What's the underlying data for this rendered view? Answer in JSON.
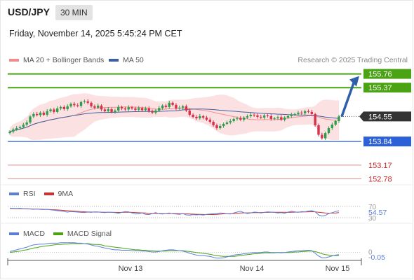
{
  "header": {
    "symbol": "USD/JPY",
    "timeframe": "30 MIN",
    "timestamp": "Friday, November 14, 2025 5:45:24 PM CET",
    "credit": "Research © 2025 Trading Central"
  },
  "colors": {
    "up": "#2e9e4a",
    "down": "#d6324a",
    "resistance": "#4aa312",
    "support": "#2b60d6",
    "minor": "#e68a8a",
    "current": "#333333",
    "band": "#fbd9dc",
    "ma20": "#f28c8c",
    "ma50": "#3d5fa0",
    "arrow": "#2f5fa8",
    "rsi": "#5b7fd8",
    "rsi_ma": "#d32f2f",
    "macd": "#5b7fd8",
    "macd_signal": "#4aa312"
  },
  "legend": {
    "ma20": "MA 20 + Bollinger Bands",
    "ma50": "MA 50",
    "rsi": "RSI",
    "rsi_ma": "9MA",
    "macd": "MACD",
    "macd_signal": "MACD Signal"
  },
  "chart_data": {
    "type": "candlestick",
    "y_range": [
      152.57,
      156.03
    ],
    "levels": [
      {
        "value": 155.76,
        "label": "155.76",
        "kind": "resistance"
      },
      {
        "value": 155.37,
        "label": "155.37",
        "kind": "resistance"
      },
      {
        "value": 154.55,
        "label": "154.55",
        "kind": "current"
      },
      {
        "value": 153.84,
        "label": "153.84",
        "kind": "support"
      },
      {
        "value": 153.17,
        "label": "153.17",
        "kind": "minor"
      },
      {
        "value": 152.78,
        "label": "152.78",
        "kind": "minor"
      }
    ],
    "closes": [
      154.12,
      154.18,
      154.22,
      154.25,
      154.32,
      154.38,
      154.55,
      154.62,
      154.59,
      154.66,
      154.6,
      154.7,
      154.75,
      154.68,
      154.78,
      154.82,
      154.76,
      154.84,
      154.91,
      154.87,
      154.85,
      154.96,
      154.98,
      154.94,
      154.84,
      154.8,
      154.86,
      154.75,
      154.7,
      154.76,
      154.68,
      154.72,
      154.82,
      154.78,
      154.75,
      154.81,
      154.78,
      154.74,
      154.79,
      154.73,
      154.78,
      154.71,
      154.66,
      154.72,
      154.79,
      154.86,
      154.82,
      154.94,
      154.88,
      154.78,
      154.8,
      154.84,
      154.72,
      154.6,
      154.54,
      154.5,
      154.56,
      154.52,
      154.46,
      154.4,
      154.3,
      154.22,
      154.28,
      154.34,
      154.38,
      154.42,
      154.48,
      154.5,
      154.46,
      154.52,
      154.56,
      154.6,
      154.58,
      154.54,
      154.52,
      154.58,
      154.56,
      154.48,
      154.5,
      154.53,
      154.46,
      154.52,
      154.56,
      154.6,
      154.62,
      154.66,
      154.64,
      154.7,
      154.68,
      154.62,
      154.3,
      154.03,
      153.93,
      154.08,
      154.22,
      154.32,
      154.42,
      154.55
    ],
    "candles_count": 98,
    "x_labels": [
      "Nov 13",
      "Nov 14",
      "Nov 15"
    ],
    "projection": {
      "from": 154.55,
      "to": 155.76
    }
  },
  "rsi": {
    "value": "54.57",
    "levels": [
      "70",
      "30"
    ],
    "values": [
      64,
      63.5,
      63,
      63.8,
      62.5,
      62,
      61,
      60,
      61.5,
      59.5,
      59,
      60,
      58,
      57,
      55,
      54,
      52,
      50,
      52,
      51,
      50,
      49,
      48.5,
      50,
      49,
      51,
      50.5,
      49,
      48,
      50,
      49,
      48,
      46,
      49,
      52,
      51,
      47,
      43,
      44,
      47,
      42,
      41,
      45,
      48,
      44,
      43,
      45,
      47,
      44,
      43,
      42,
      45,
      40,
      39,
      41,
      40,
      41,
      39.5,
      42,
      43,
      44,
      45,
      47,
      46,
      44,
      43,
      47,
      50,
      53,
      48,
      45,
      47,
      50,
      49,
      47,
      49,
      51,
      50,
      49,
      47,
      48,
      46,
      50,
      53,
      51,
      49,
      52,
      51,
      54,
      55,
      51,
      40,
      36,
      38,
      45,
      48,
      52,
      55
    ],
    "ma_values": [
      63,
      62.8,
      62.5,
      62.4,
      62.2,
      61.8,
      61.4,
      61,
      60.7,
      60.3,
      59.9,
      59.5,
      59,
      58.5,
      57.8,
      57,
      56,
      55,
      54.2,
      53.4,
      52.6,
      51.8,
      51,
      50.5,
      50.2,
      50,
      49.9,
      49.7,
      49.5,
      49.4,
      49.2,
      49,
      48.8,
      48.9,
      49.2,
      49.4,
      49.1,
      48.4,
      47.7,
      47.3,
      46.8,
      45.8,
      45.2,
      45.3,
      45.1,
      44.8,
      44.8,
      45,
      44.9,
      44.7,
      44.4,
      44.6,
      44,
      43.3,
      42.8,
      42.3,
      41.9,
      41.6,
      41.3,
      41.2,
      41.3,
      41.9,
      42.8,
      43.7,
      44.3,
      44.6,
      45.1,
      46,
      47,
      47.3,
      47.3,
      47.5,
      47.9,
      48.3,
      48.5,
      48.9,
      49.1,
      49.2,
      49.3,
      49.3,
      49.4,
      49.2,
      49.1,
      49.3,
      49.8,
      50,
      50.2,
      50.5,
      51,
      51.4,
      51,
      49.6,
      47.9,
      46.7,
      46.3,
      46.5,
      47.1,
      48
    ],
    "ylim": [
      20,
      80
    ]
  },
  "macd": {
    "value": "-0.05",
    "values": [
      0.02,
      0.04,
      0.06,
      0.08,
      0.1,
      0.12,
      0.15,
      0.17,
      0.18,
      0.19,
      0.19,
      0.2,
      0.21,
      0.21,
      0.21,
      0.22,
      0.22,
      0.22,
      0.22,
      0.22,
      0.21,
      0.21,
      0.2,
      0.19,
      0.17,
      0.15,
      0.14,
      0.12,
      0.1,
      0.09,
      0.07,
      0.06,
      0.06,
      0.05,
      0.05,
      0.05,
      0.04,
      0.04,
      0.04,
      0.03,
      0.03,
      0.02,
      0.01,
      0.01,
      0.02,
      0.04,
      0.05,
      0.06,
      0.06,
      0.05,
      0.04,
      0.03,
      0.01,
      -0.02,
      -0.04,
      -0.06,
      -0.07,
      -0.07,
      -0.08,
      -0.09,
      -0.11,
      -0.13,
      -0.13,
      -0.12,
      -0.1,
      -0.08,
      -0.06,
      -0.05,
      -0.04,
      -0.03,
      -0.02,
      -0.01,
      0.0,
      0.0,
      0.0,
      0.01,
      0.01,
      0.0,
      0.0,
      0.0,
      -0.01,
      0.0,
      0.01,
      0.02,
      0.03,
      0.04,
      0.04,
      0.05,
      0.05,
      0.04,
      -0.02,
      -0.08,
      -0.12,
      -0.12,
      -0.1,
      -0.08,
      -0.06,
      -0.05
    ],
    "signal_values": [
      0.0,
      0.01,
      0.02,
      0.03,
      0.05,
      0.06,
      0.08,
      0.1,
      0.11,
      0.13,
      0.14,
      0.15,
      0.16,
      0.17,
      0.18,
      0.18,
      0.19,
      0.19,
      0.2,
      0.2,
      0.2,
      0.2,
      0.2,
      0.2,
      0.19,
      0.18,
      0.18,
      0.17,
      0.15,
      0.14,
      0.13,
      0.12,
      0.11,
      0.1,
      0.09,
      0.08,
      0.07,
      0.06,
      0.06,
      0.05,
      0.05,
      0.04,
      0.04,
      0.03,
      0.03,
      0.03,
      0.03,
      0.04,
      0.04,
      0.04,
      0.04,
      0.04,
      0.03,
      0.02,
      0.01,
      0.0,
      -0.01,
      -0.02,
      -0.03,
      -0.04,
      -0.06,
      -0.07,
      -0.08,
      -0.09,
      -0.09,
      -0.09,
      -0.09,
      -0.08,
      -0.07,
      -0.06,
      -0.05,
      -0.04,
      -0.03,
      -0.03,
      -0.02,
      -0.01,
      -0.01,
      -0.01,
      -0.01,
      0.0,
      0.0,
      0.0,
      0.0,
      0.0,
      0.01,
      0.01,
      0.02,
      0.02,
      0.03,
      0.03,
      0.02,
      0.0,
      -0.03,
      -0.05,
      -0.06,
      -0.07,
      -0.07,
      -0.07
    ],
    "zero_label": "0",
    "ylim": [
      -0.18,
      0.28
    ]
  }
}
